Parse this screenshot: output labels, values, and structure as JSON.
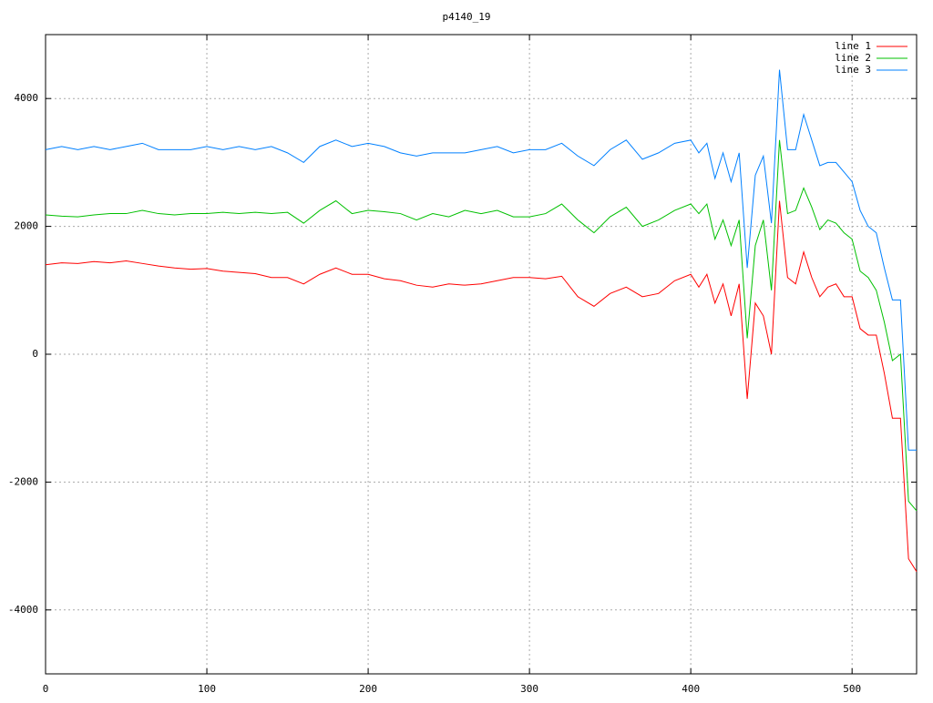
{
  "chart_data": {
    "type": "line",
    "title": "p4140_19",
    "x": [
      0,
      10,
      20,
      30,
      40,
      50,
      60,
      70,
      80,
      90,
      100,
      110,
      120,
      130,
      140,
      150,
      160,
      170,
      180,
      190,
      200,
      210,
      220,
      230,
      240,
      250,
      260,
      270,
      280,
      290,
      300,
      310,
      320,
      330,
      340,
      350,
      360,
      370,
      380,
      390,
      400,
      405,
      410,
      415,
      420,
      425,
      430,
      435,
      440,
      445,
      450,
      455,
      460,
      465,
      470,
      475,
      480,
      485,
      490,
      495,
      500,
      505,
      510,
      515,
      520,
      525,
      530,
      535,
      540
    ],
    "series": [
      {
        "name": "line 1",
        "color": "#ff0000",
        "values": [
          1400,
          1430,
          1420,
          1450,
          1430,
          1460,
          1420,
          1380,
          1350,
          1330,
          1340,
          1300,
          1280,
          1260,
          1200,
          1200,
          1100,
          1250,
          1350,
          1250,
          1250,
          1180,
          1150,
          1080,
          1050,
          1100,
          1080,
          1100,
          1150,
          1200,
          1200,
          1180,
          1220,
          900,
          750,
          950,
          1050,
          900,
          950,
          1150,
          1250,
          1050,
          1250,
          800,
          1100,
          600,
          1100,
          -700,
          800,
          600,
          0,
          2400,
          1200,
          1100,
          1600,
          1200,
          900,
          1050,
          1100,
          900,
          900,
          400,
          300,
          300,
          -300,
          -1000,
          -1000,
          -3200,
          -3400
        ]
      },
      {
        "name": "line 2",
        "color": "#00c000",
        "values": [
          2180,
          2160,
          2150,
          2180,
          2200,
          2200,
          2250,
          2200,
          2180,
          2200,
          2200,
          2220,
          2200,
          2220,
          2200,
          2220,
          2050,
          2250,
          2400,
          2200,
          2250,
          2230,
          2200,
          2100,
          2200,
          2150,
          2250,
          2200,
          2250,
          2150,
          2150,
          2200,
          2350,
          2100,
          1900,
          2150,
          2300,
          2000,
          2100,
          2250,
          2350,
          2200,
          2350,
          1800,
          2100,
          1700,
          2100,
          250,
          1700,
          2100,
          1000,
          3350,
          2200,
          2250,
          2600,
          2300,
          1950,
          2100,
          2050,
          1900,
          1800,
          1300,
          1200,
          1000,
          500,
          -100,
          0,
          -2300,
          -2450
        ]
      },
      {
        "name": "line 3",
        "color": "#0080ff",
        "values": [
          3200,
          3250,
          3200,
          3250,
          3200,
          3250,
          3300,
          3200,
          3200,
          3200,
          3250,
          3200,
          3250,
          3200,
          3250,
          3150,
          3000,
          3250,
          3350,
          3250,
          3300,
          3250,
          3150,
          3100,
          3150,
          3150,
          3150,
          3200,
          3250,
          3150,
          3200,
          3200,
          3300,
          3100,
          2950,
          3200,
          3350,
          3050,
          3150,
          3300,
          3350,
          3150,
          3300,
          2750,
          3150,
          2700,
          3150,
          1350,
          2800,
          3100,
          2050,
          4450,
          3200,
          3200,
          3750,
          3350,
          2950,
          3000,
          3000,
          2850,
          2700,
          2250,
          2000,
          1900,
          1350,
          850,
          850,
          -1500,
          -1500
        ]
      }
    ],
    "xlim": [
      0,
      540
    ],
    "xticks": [
      0,
      100,
      200,
      300,
      400,
      500
    ],
    "ylim": [
      -5000,
      5000
    ],
    "yticks": [
      -4000,
      -2000,
      0,
      2000,
      4000
    ],
    "grid": true,
    "legend": "top-right"
  }
}
